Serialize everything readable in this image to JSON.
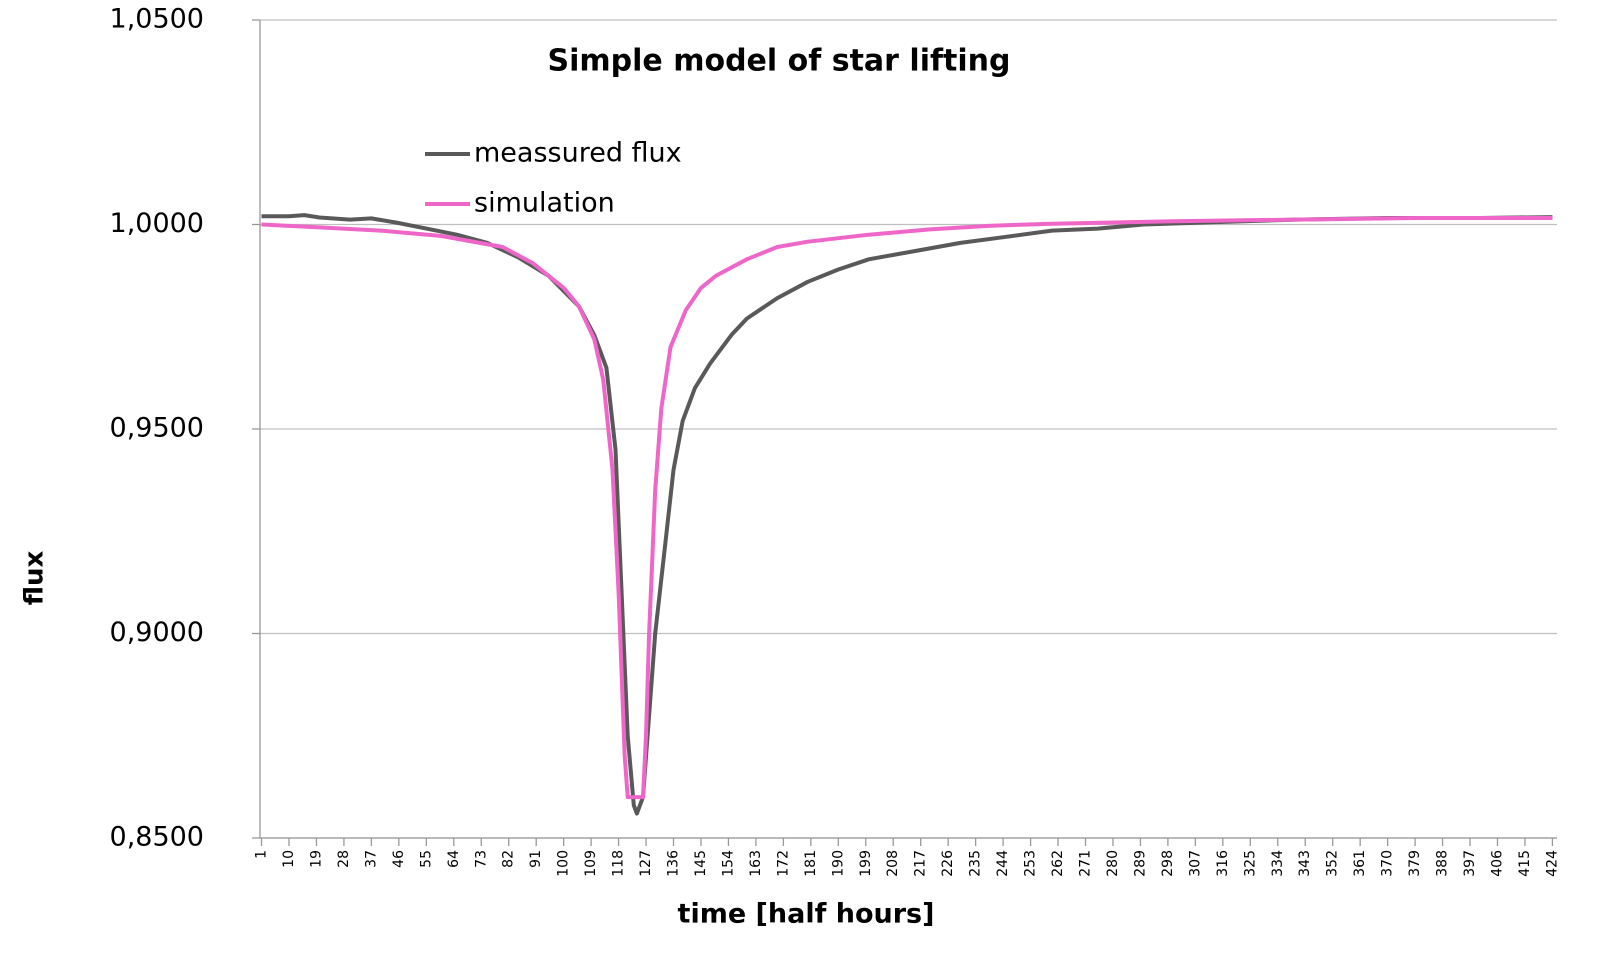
{
  "chart_data": {
    "type": "line",
    "title": "Simple model of star lifting",
    "x_label": "time [half hours]",
    "y_label": "flux",
    "xlim": [
      0.5,
      425.5
    ],
    "ylim": [
      0.85,
      1.05
    ],
    "xticks": [
      1,
      10,
      19,
      28,
      37,
      46,
      55,
      64,
      73,
      82,
      91,
      100,
      109,
      118,
      127,
      136,
      145,
      154,
      163,
      172,
      181,
      190,
      199,
      208,
      217,
      226,
      235,
      244,
      253,
      262,
      271,
      280,
      289,
      298,
      307,
      316,
      325,
      334,
      343,
      352,
      361,
      370,
      379,
      388,
      397,
      406,
      415,
      424
    ],
    "yticks": [
      {
        "value": 0.85,
        "label": "0,8500"
      },
      {
        "value": 0.9,
        "label": "0,9000"
      },
      {
        "value": 0.95,
        "label": "0,9500"
      },
      {
        "value": 1.0,
        "label": "1,0000"
      },
      {
        "value": 1.05,
        "label": "1,0500"
      }
    ],
    "grid": true,
    "series": [
      {
        "name": "meassured flux",
        "color": "#595959",
        "x": [
          1,
          10,
          15,
          20,
          30,
          37,
          45,
          55,
          65,
          75,
          85,
          95,
          105,
          110,
          114,
          117,
          119,
          121,
          123,
          124,
          126,
          128,
          130,
          133,
          136,
          139,
          143,
          148,
          155,
          160,
          170,
          180,
          190,
          200,
          215,
          230,
          245,
          260,
          275,
          290,
          310,
          340,
          370,
          400,
          424
        ],
        "values": [
          1.002,
          1.002,
          1.0023,
          1.0017,
          1.0012,
          1.0015,
          1.0005,
          0.999,
          0.9975,
          0.9955,
          0.992,
          0.9875,
          0.98,
          0.973,
          0.965,
          0.945,
          0.91,
          0.875,
          0.858,
          0.856,
          0.86,
          0.88,
          0.9,
          0.92,
          0.94,
          0.952,
          0.96,
          0.966,
          0.973,
          0.977,
          0.982,
          0.986,
          0.989,
          0.9915,
          0.9935,
          0.9955,
          0.997,
          0.9985,
          0.999,
          1.0,
          1.0005,
          1.0012,
          1.0016,
          1.0016,
          1.0018
        ]
      },
      {
        "name": "simulation",
        "color": "#ee66c8",
        "x": [
          1,
          20,
          40,
          60,
          80,
          90,
          100,
          105,
          110,
          113,
          116,
          118,
          120,
          121,
          126,
          127,
          128,
          130,
          132,
          135,
          140,
          145,
          150,
          160,
          170,
          180,
          200,
          220,
          240,
          260,
          300,
          340,
          380,
          424
        ],
        "values": [
          1.0,
          0.9993,
          0.9985,
          0.9972,
          0.9945,
          0.9905,
          0.9845,
          0.98,
          0.972,
          0.962,
          0.94,
          0.91,
          0.87,
          0.86,
          0.86,
          0.875,
          0.9,
          0.935,
          0.955,
          0.97,
          0.979,
          0.9845,
          0.9875,
          0.9915,
          0.9945,
          0.9958,
          0.9975,
          0.9988,
          0.9997,
          1.0002,
          1.0008,
          1.0012,
          1.0016,
          1.0016
        ]
      }
    ]
  }
}
